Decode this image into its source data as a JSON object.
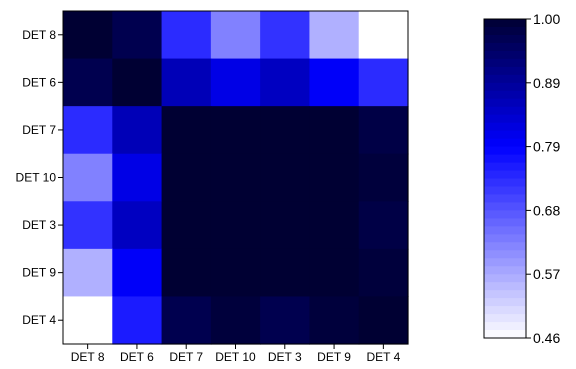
{
  "chart_data": {
    "type": "heatmap",
    "title": "",
    "xlabel": "",
    "ylabel": "",
    "x_categories": [
      "DET 8",
      "DET 6",
      "DET 7",
      "DET 10",
      "DET 3",
      "DET 9",
      "DET 4"
    ],
    "y_categories": [
      "DET 8",
      "DET 6",
      "DET 7",
      "DET 10",
      "DET 3",
      "DET 9",
      "DET 4"
    ],
    "values": [
      [
        1.0,
        0.97,
        0.73,
        0.62,
        0.72,
        0.56,
        0.46
      ],
      [
        0.97,
        1.0,
        0.86,
        0.81,
        0.85,
        0.79,
        0.73
      ],
      [
        0.73,
        0.86,
        1.0,
        1.0,
        1.0,
        1.0,
        0.98
      ],
      [
        0.62,
        0.81,
        1.0,
        1.0,
        1.0,
        1.0,
        0.99
      ],
      [
        0.72,
        0.85,
        1.0,
        1.0,
        1.0,
        1.0,
        0.98
      ],
      [
        0.56,
        0.79,
        1.0,
        1.0,
        1.0,
        1.0,
        0.99
      ],
      [
        0.46,
        0.75,
        0.97,
        0.99,
        0.97,
        0.99,
        1.0
      ]
    ],
    "colorbar": {
      "min": 0.46,
      "max": 1.0,
      "ticks": [
        "1.00",
        "0.89",
        "0.79",
        "0.68",
        "0.57",
        "0.46"
      ],
      "low_color": "#ffffff",
      "mid_color": "#0000ff",
      "high_color": "#000033"
    },
    "grid": false
  }
}
